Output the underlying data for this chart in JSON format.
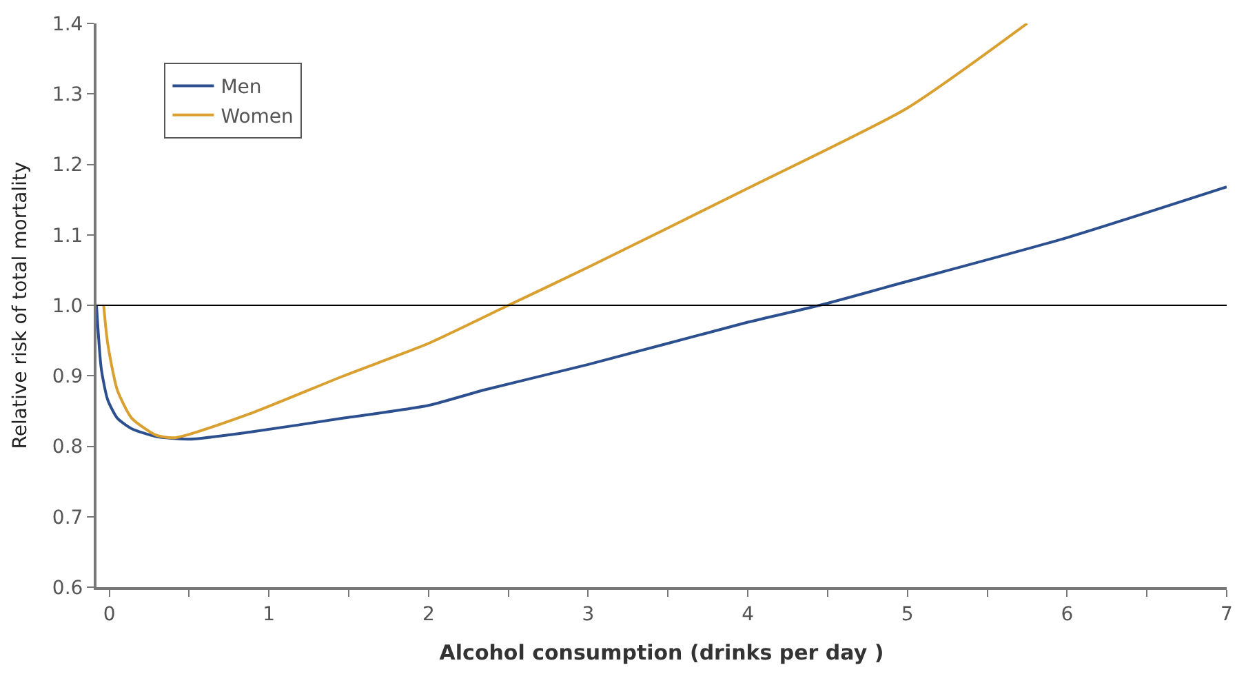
{
  "chart_data": {
    "type": "line",
    "xlabel": "Alcohol consumption (drinks per day )",
    "ylabel": "Relative risk of total mortality",
    "xlim": [
      -0.08,
      7
    ],
    "ylim": [
      0.6,
      1.4
    ],
    "xticks": [
      0,
      {
        "value": 0.5,
        "label": null
      },
      1,
      {
        "value": 1.5,
        "label": null
      },
      2,
      {
        "value": 2.5,
        "label": null
      },
      3,
      {
        "value": 3.5,
        "label": null
      },
      4,
      {
        "value": 4.5,
        "label": null
      },
      5,
      {
        "value": 5.5,
        "label": null
      },
      6,
      {
        "value": 6.5,
        "label": null
      },
      7
    ],
    "yticks": [
      0.6,
      0.7,
      0.8,
      0.9,
      {
        "value": 1.0,
        "label": "1.0"
      },
      1.1,
      1.2,
      1.3,
      1.4
    ],
    "series": [
      {
        "name": "Men",
        "color": "#2b4f8f",
        "x": [
          -0.08,
          -0.05,
          -0.01,
          0.05,
          0.14,
          0.29,
          0.5,
          0.88,
          1.47,
          2,
          2.35,
          3,
          4,
          4.45,
          5,
          6,
          7
        ],
        "values": [
          1.0,
          0.91,
          0.866,
          0.84,
          0.825,
          0.814,
          0.81,
          0.82,
          0.84,
          0.858,
          0.88,
          0.916,
          0.976,
          1.0,
          1.034,
          1.096,
          1.168
        ]
      },
      {
        "name": "Women",
        "color": "#d9a030",
        "x": [
          -0.035,
          -0.01,
          0.05,
          0.14,
          0.29,
          0.41,
          0.88,
          1.47,
          2,
          2.5,
          3,
          4,
          5,
          5.75
        ],
        "values": [
          1.0,
          0.946,
          0.88,
          0.84,
          0.816,
          0.812,
          0.846,
          0.9,
          0.946,
          1.0,
          1.054,
          1.166,
          1.28,
          1.4
        ]
      }
    ],
    "ref_lines": [
      {
        "axis": "y",
        "value": 1.0,
        "color": "#000000"
      }
    ],
    "legend": "top left",
    "marker": "none",
    "line_style": "solid"
  }
}
